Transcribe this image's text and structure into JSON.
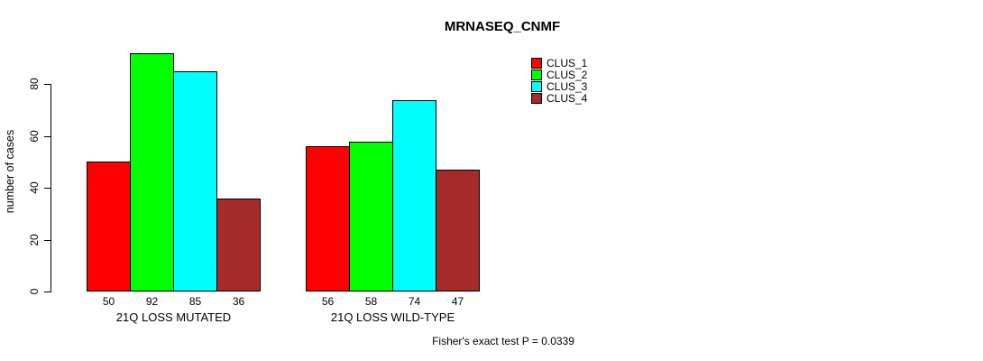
{
  "chart_data": {
    "type": "bar",
    "title": "MRNASEQ_CNMF",
    "ylabel": "number of cases",
    "xlabel": "",
    "ylim": [
      0,
      80
    ],
    "yticks": [
      0,
      20,
      40,
      60,
      80
    ],
    "grid": false,
    "legend_position": "top-right",
    "categories": [
      "21Q LOSS MUTATED",
      "21Q LOSS WILD-TYPE"
    ],
    "series": [
      {
        "name": "CLUS_1",
        "color": "#FF0000",
        "values": [
          50,
          56
        ]
      },
      {
        "name": "CLUS_2",
        "color": "#00FF00",
        "values": [
          92,
          58
        ]
      },
      {
        "name": "CLUS_3",
        "color": "#00FFFF",
        "values": [
          85,
          74
        ]
      },
      {
        "name": "CLUS_4",
        "color": "#A52A2A",
        "values": [
          36,
          47
        ]
      }
    ],
    "bar_value_labels": [
      [
        50,
        92,
        85,
        36
      ],
      [
        56,
        58,
        74,
        47
      ]
    ],
    "annotation": "Fisher's exact test P = 0.0339"
  }
}
